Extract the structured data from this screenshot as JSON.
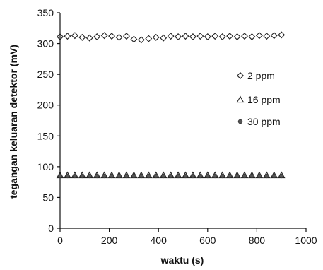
{
  "chart_data": {
    "type": "scatter",
    "title": "",
    "xlabel": "waktu (s)",
    "ylabel": "tegangan keluaran detektor (mV)",
    "xlim": [
      0,
      1000
    ],
    "ylim": [
      0,
      350
    ],
    "x_ticks": [
      0,
      200,
      400,
      600,
      800,
      1000
    ],
    "y_ticks": [
      0,
      50,
      100,
      150,
      200,
      250,
      300,
      350
    ],
    "grid": false,
    "legend_position": "right",
    "series": [
      {
        "name": "2 ppm",
        "marker": "diamond",
        "x": [
          0,
          30,
          60,
          90,
          120,
          150,
          180,
          210,
          240,
          270,
          300,
          330,
          360,
          390,
          420,
          450,
          480,
          510,
          540,
          570,
          600,
          630,
          660,
          690,
          720,
          750,
          780,
          810,
          840,
          870,
          900
        ],
        "y": [
          311,
          312,
          313,
          310,
          309,
          311,
          313,
          312,
          310,
          312,
          307,
          306,
          308,
          310,
          309,
          312,
          311,
          312,
          311,
          312,
          311,
          312,
          311,
          312,
          311,
          312,
          311,
          313,
          312,
          313,
          314
        ]
      },
      {
        "name": "16 ppm",
        "marker": "triangle",
        "x": [
          0,
          30,
          60,
          90,
          120,
          150,
          180,
          210,
          240,
          270,
          300,
          330,
          360,
          390,
          420,
          450,
          480,
          510,
          540,
          570,
          600,
          630,
          660,
          690,
          720,
          750,
          780,
          810,
          840,
          870,
          900
        ],
        "y": [
          86,
          86,
          86,
          86,
          86,
          86,
          86,
          86,
          86,
          86,
          86,
          86,
          86,
          86,
          86,
          86,
          86,
          86,
          86,
          86,
          86,
          86,
          86,
          86,
          86,
          86,
          86,
          86,
          86,
          86,
          86
        ]
      },
      {
        "name": "30 ppm",
        "marker": "circle",
        "x": [
          0,
          30,
          60,
          90,
          120,
          150,
          180,
          210,
          240,
          270,
          300,
          330,
          360,
          390,
          420,
          450,
          480,
          510,
          540,
          570,
          600,
          630,
          660,
          690,
          720,
          750,
          780,
          810,
          840,
          870,
          900
        ],
        "y": [
          85,
          85,
          85,
          85,
          85,
          85,
          85,
          85,
          85,
          85,
          85,
          85,
          85,
          85,
          85,
          85,
          85,
          85,
          85,
          85,
          85,
          85,
          85,
          85,
          85,
          85,
          85,
          85,
          85,
          85,
          85
        ]
      }
    ]
  }
}
